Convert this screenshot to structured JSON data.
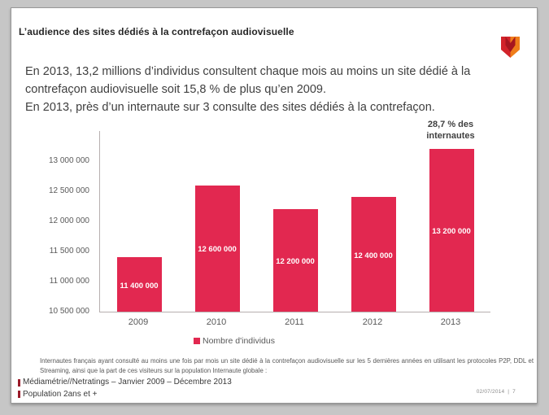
{
  "slide": {
    "title": "L’audience des sites dédiés à la contrefaçon audiovisuelle",
    "intro_paragraph_1": "En 2013, 13,2 millions d’individus consultent chaque mois au moins un site dédié à la contrefaçon audiovisuelle soit 15,8 % de plus qu’en 2009.",
    "intro_paragraph_2": "En 2013, près d’un internaute sur 3 consulte des sites dédiés à la contrefaçon.",
    "footnote": "Internautes français ayant consulté au moins une fois par mois un site dédié à la contrefaçon audiovisuelle sur les 5 dernières années en utilisant les protocoles P2P, DDL et Streaming, ainsi que la part de ces visiteurs sur la population Internaute globale :",
    "source_line_1": "Médiamétrie//Netratings – Janvier 2009 – Décembre 2013",
    "source_line_2": "Population 2ans et +",
    "footer_date": "02/07/2014",
    "footer_separator": "|",
    "footer_page": "7"
  },
  "icons": {
    "logo": "mediametrie-m-logo",
    "legend_marker": "red-square",
    "source_bullet": "dark-red-flag-bullet"
  },
  "colors": {
    "bar_red": "#E22850",
    "logo_red": "#D2232A",
    "logo_orange": "#EF7D1A",
    "logo_dark_red": "#A6161F",
    "bullet_red": "#9B1B29",
    "title_text": "#262626",
    "body_text": "#404040",
    "muted_text": "#595959",
    "axis_line": "#B7AFAF",
    "canvas_bg": "#C6C6C6",
    "slide_bg": "#FFFFFF"
  },
  "chart_data": {
    "type": "bar",
    "title": "",
    "xlabel": "",
    "ylabel": "",
    "categories": [
      "2009",
      "2010",
      "2011",
      "2012",
      "2013"
    ],
    "values": [
      11400000,
      12600000,
      12200000,
      12400000,
      13200000
    ],
    "value_labels": [
      "11 400 000",
      "12 600 000",
      "12 200 000",
      "12 400 000",
      "13 200 000"
    ],
    "series_name": "Nombre d'individus",
    "ylim": [
      10500000,
      13500000
    ],
    "yticks": [
      10500000,
      11000000,
      11500000,
      12000000,
      12500000,
      13000000
    ],
    "ytick_labels": [
      "10 500 000",
      "11 000 000",
      "11 500 000",
      "12 000 000",
      "12 500 000",
      "13 000 000"
    ],
    "grid": false,
    "legend_position": "bottom",
    "annotation": {
      "text": "28,7 % des internautes",
      "target_category": "2013"
    }
  }
}
